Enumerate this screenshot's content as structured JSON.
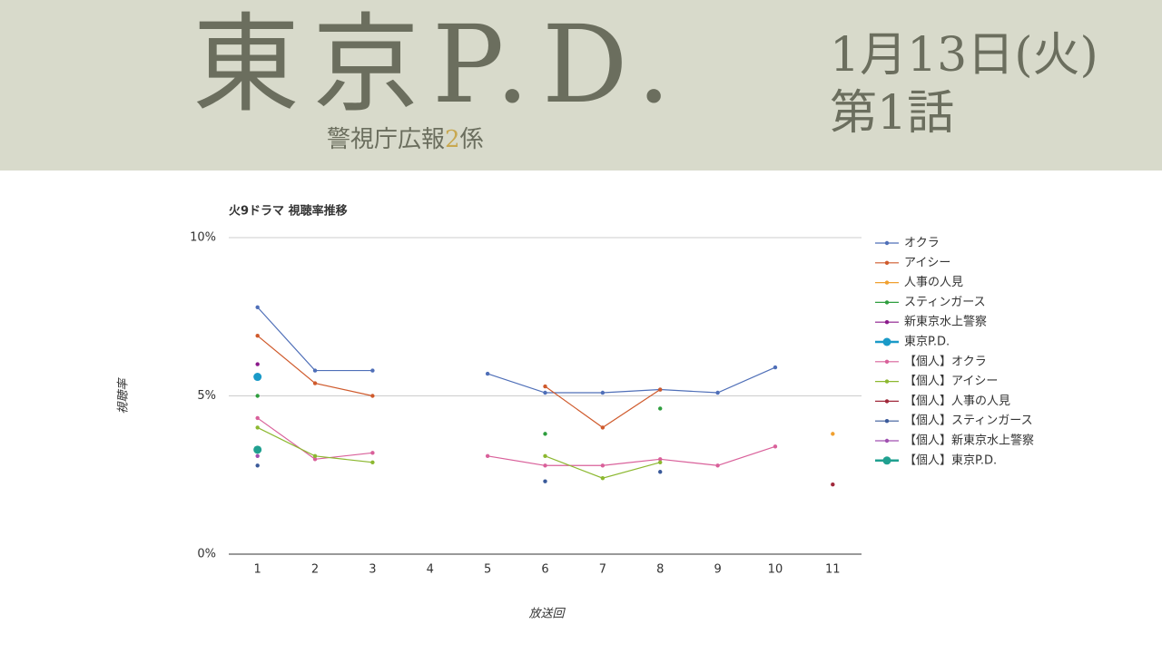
{
  "header": {
    "title": "東京P.D.",
    "subtitle": {
      "before": "警視庁広報",
      "number": "2",
      "after": "係"
    },
    "date": "1月13日(火)",
    "episode": "第1話"
  },
  "chart_data": {
    "type": "line",
    "title": "火9ドラマ 視聴率推移",
    "x_label": "放送回",
    "y_label": "視聴率",
    "categories": [
      "1",
      "2",
      "3",
      "4",
      "5",
      "6",
      "7",
      "8",
      "9",
      "10",
      "11"
    ],
    "ylim": [
      0,
      10
    ],
    "yticks": [
      {
        "value": 0,
        "label": "0%"
      },
      {
        "value": 5,
        "label": "5%"
      },
      {
        "value": 10,
        "label": "10%"
      }
    ],
    "grid": true,
    "legend": "right",
    "series": [
      {
        "name": "オクラ",
        "color": "#4f6fb8",
        "values": [
          7.8,
          5.8,
          5.8,
          null,
          5.7,
          5.1,
          5.1,
          5.2,
          5.1,
          5.9,
          null
        ]
      },
      {
        "name": "アイシー",
        "color": "#cf5a2c",
        "values": [
          6.9,
          5.4,
          5.0,
          null,
          null,
          5.3,
          4.0,
          5.2,
          null,
          null,
          null
        ]
      },
      {
        "name": "人事の人見",
        "color": "#f0a030",
        "values": [
          null,
          null,
          null,
          null,
          null,
          null,
          null,
          null,
          null,
          null,
          3.8
        ]
      },
      {
        "name": "スティンガース",
        "color": "#2e9e3e",
        "values": [
          5.0,
          null,
          null,
          null,
          null,
          3.8,
          null,
          4.6,
          null,
          null,
          null
        ]
      },
      {
        "name": "新東京水上警察",
        "color": "#8b1a8b",
        "values": [
          6.0,
          null,
          null,
          null,
          null,
          null,
          null,
          null,
          null,
          null,
          null
        ]
      },
      {
        "name": "東京P.D.",
        "color": "#1a9ac8",
        "values": [
          5.6,
          null,
          null,
          null,
          null,
          null,
          null,
          null,
          null,
          null,
          null
        ]
      },
      {
        "name": "【個人】オクラ",
        "color": "#d9609a",
        "values": [
          4.3,
          3.0,
          3.2,
          null,
          3.1,
          2.8,
          2.8,
          3.0,
          2.8,
          3.4,
          null
        ]
      },
      {
        "name": "【個人】アイシー",
        "color": "#8cb830",
        "values": [
          4.0,
          3.1,
          2.9,
          null,
          null,
          3.1,
          2.4,
          2.9,
          null,
          null,
          null
        ]
      },
      {
        "name": "【個人】人事の人見",
        "color": "#a0283a",
        "values": [
          null,
          null,
          null,
          null,
          null,
          null,
          null,
          null,
          null,
          null,
          2.2
        ]
      },
      {
        "name": "【個人】スティンガース",
        "color": "#3a5a9a",
        "values": [
          2.8,
          null,
          null,
          null,
          null,
          2.3,
          null,
          2.6,
          null,
          null,
          null
        ]
      },
      {
        "name": "【個人】新東京水上警察",
        "color": "#a050b0",
        "values": [
          3.1,
          null,
          null,
          null,
          null,
          null,
          null,
          null,
          null,
          null,
          null
        ]
      },
      {
        "name": "【個人】東京P.D.",
        "color": "#20a090",
        "values": [
          3.3,
          null,
          null,
          null,
          null,
          null,
          null,
          null,
          null,
          null,
          null
        ]
      }
    ]
  }
}
